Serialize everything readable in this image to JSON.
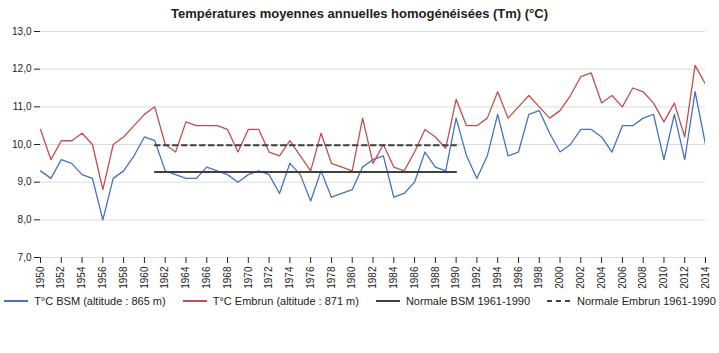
{
  "chart_data": {
    "type": "line",
    "title": "Températures moyennes annuelles homogénéisées (Tm) (°C)",
    "x": [
      1950,
      1951,
      1952,
      1953,
      1954,
      1955,
      1956,
      1957,
      1958,
      1959,
      1960,
      1961,
      1962,
      1963,
      1964,
      1965,
      1966,
      1967,
      1968,
      1969,
      1970,
      1971,
      1972,
      1973,
      1974,
      1975,
      1976,
      1977,
      1978,
      1979,
      1980,
      1981,
      1982,
      1983,
      1984,
      1985,
      1986,
      1987,
      1988,
      1989,
      1990,
      1991,
      1992,
      1993,
      1994,
      1995,
      1996,
      1997,
      1998,
      1999,
      2000,
      2001,
      2002,
      2003,
      2004,
      2005,
      2006,
      2007,
      2008,
      2009,
      2010,
      2011,
      2012,
      2013,
      2014
    ],
    "xlim": [
      1950,
      2014
    ],
    "xticks": [
      1950,
      1952,
      1954,
      1956,
      1958,
      1960,
      1962,
      1964,
      1966,
      1968,
      1970,
      1972,
      1974,
      1976,
      1978,
      1980,
      1982,
      1984,
      1986,
      1988,
      1990,
      1992,
      1994,
      1996,
      1998,
      2000,
      2002,
      2004,
      2006,
      2008,
      2010,
      2012,
      2014
    ],
    "ylim": [
      7.0,
      13.0
    ],
    "yticks": [
      {
        "value": 7.0,
        "label": "7,0"
      },
      {
        "value": 8.0,
        "label": "8,0"
      },
      {
        "value": 9.0,
        "label": "9,0"
      },
      {
        "value": 10.0,
        "label": "10,0"
      },
      {
        "value": 11.0,
        "label": "11,0"
      },
      {
        "value": 12.0,
        "label": "12,0"
      },
      {
        "value": 13.0,
        "label": "13,0"
      }
    ],
    "grid": true,
    "legend": "bottom",
    "series": [
      {
        "name": "T°C BSM (altitude : 865 m)",
        "color": "#4472C4",
        "line_style": "solid",
        "values": [
          9.3,
          9.1,
          9.6,
          9.5,
          9.2,
          9.1,
          8.0,
          9.1,
          9.3,
          9.7,
          10.2,
          10.1,
          9.3,
          9.2,
          9.1,
          9.1,
          9.4,
          9.3,
          9.2,
          9.0,
          9.2,
          9.3,
          9.2,
          8.7,
          9.5,
          9.2,
          8.5,
          9.3,
          8.6,
          8.7,
          8.8,
          9.4,
          9.6,
          9.7,
          8.6,
          8.7,
          9.0,
          9.8,
          9.4,
          9.3,
          10.7,
          9.7,
          9.1,
          9.7,
          10.8,
          9.7,
          9.8,
          10.8,
          10.9,
          10.3,
          9.8,
          10.0,
          10.4,
          10.4,
          10.2,
          9.8,
          10.5,
          10.5,
          10.7,
          10.8,
          9.6,
          10.8,
          9.6,
          11.4,
          10.0
        ]
      },
      {
        "name": "T°C Embrun (altitude : 871 m)",
        "color": "#C0504D",
        "line_style": "solid",
        "values": [
          10.4,
          9.6,
          10.1,
          10.1,
          10.3,
          10.0,
          8.8,
          10.0,
          10.2,
          10.5,
          10.8,
          11.0,
          10.0,
          9.8,
          10.6,
          10.5,
          10.5,
          10.5,
          10.4,
          9.8,
          10.4,
          10.4,
          9.8,
          9.7,
          10.1,
          9.7,
          9.3,
          10.3,
          9.5,
          9.4,
          9.3,
          10.7,
          9.5,
          10.0,
          9.4,
          9.3,
          9.8,
          10.4,
          10.2,
          9.9,
          11.2,
          10.5,
          10.5,
          10.7,
          11.4,
          10.7,
          11.0,
          11.3,
          11.0,
          10.7,
          10.9,
          11.3,
          11.8,
          11.9,
          11.1,
          11.3,
          11.0,
          11.5,
          11.4,
          11.1,
          10.6,
          11.1,
          10.2,
          12.1,
          11.6
        ]
      },
      {
        "name": "Normale BSM 1961-1990",
        "color": "#404040",
        "line_style": "solid",
        "values": [
          null,
          null,
          null,
          null,
          null,
          null,
          null,
          null,
          null,
          null,
          null,
          9.27,
          9.27,
          9.27,
          9.27,
          9.27,
          9.27,
          9.27,
          9.27,
          9.27,
          9.27,
          9.27,
          9.27,
          9.27,
          9.27,
          9.27,
          9.27,
          9.27,
          9.27,
          9.27,
          9.27,
          9.27,
          9.27,
          9.27,
          9.27,
          9.27,
          9.27,
          9.27,
          9.27,
          9.27,
          9.27,
          null,
          null,
          null,
          null,
          null,
          null,
          null,
          null,
          null,
          null,
          null,
          null,
          null,
          null,
          null,
          null,
          null,
          null,
          null,
          null,
          null,
          null,
          null,
          null
        ]
      },
      {
        "name": "Normale Embrun 1961-1990",
        "color": "#404040",
        "line_style": "dashed",
        "values": [
          null,
          null,
          null,
          null,
          null,
          null,
          null,
          null,
          null,
          null,
          null,
          9.98,
          9.98,
          9.98,
          9.98,
          9.98,
          9.98,
          9.98,
          9.98,
          9.98,
          9.98,
          9.98,
          9.98,
          9.98,
          9.98,
          9.98,
          9.98,
          9.98,
          9.98,
          9.98,
          9.98,
          9.98,
          9.98,
          9.98,
          9.98,
          9.98,
          9.98,
          9.98,
          9.98,
          9.98,
          9.98,
          null,
          null,
          null,
          null,
          null,
          null,
          null,
          null,
          null,
          null,
          null,
          null,
          null,
          null,
          null,
          null,
          null,
          null,
          null,
          null,
          null,
          null,
          null,
          null
        ]
      }
    ]
  }
}
